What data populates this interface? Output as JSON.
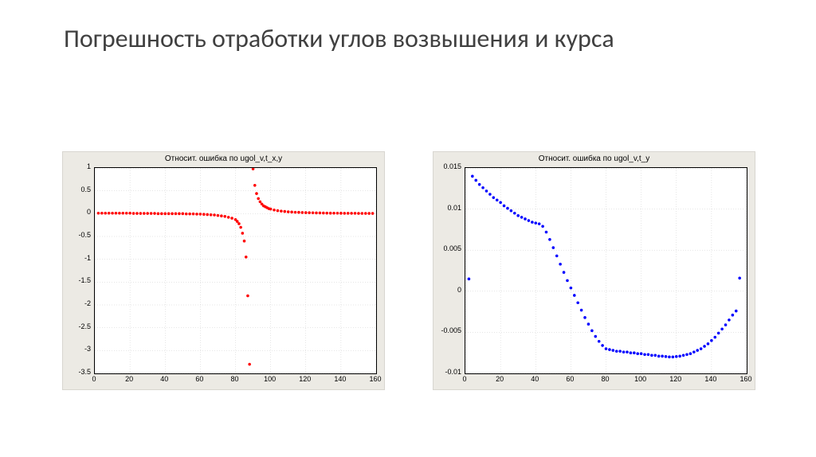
{
  "slide": {
    "title": "Погрешность отработки углов возвышения и курса",
    "title_fontsize": 32,
    "title_color": "#404040",
    "background": "#ffffff"
  },
  "left_chart": {
    "type": "scatter",
    "title": "Относит. ошибка по ugol_v,t_x,y",
    "title_fontsize": 10,
    "background_panel": "#eceae4",
    "plot_bg": "#ffffff",
    "axis_color": "#000000",
    "grid_color": "#cccccc",
    "grid_style": "dotted",
    "marker_color": "#ff0000",
    "marker_size": 1.8,
    "xlim": [
      0,
      160
    ],
    "ylim": [
      -3.5,
      1
    ],
    "xticks": [
      0,
      20,
      40,
      60,
      80,
      100,
      120,
      140,
      160
    ],
    "yticks": [
      -3.5,
      -3,
      -2.5,
      -2,
      -1.5,
      -1,
      -0.5,
      0,
      0.5,
      1
    ],
    "points": [
      [
        2,
        0.01
      ],
      [
        4,
        0.01
      ],
      [
        6,
        0.01
      ],
      [
        8,
        0.01
      ],
      [
        10,
        0.01
      ],
      [
        12,
        0.01
      ],
      [
        14,
        0.01
      ],
      [
        16,
        0.01
      ],
      [
        18,
        0.01
      ],
      [
        20,
        0.01
      ],
      [
        22,
        0.005
      ],
      [
        24,
        0.005
      ],
      [
        26,
        0.005
      ],
      [
        28,
        0.005
      ],
      [
        30,
        0.005
      ],
      [
        32,
        0.005
      ],
      [
        34,
        0.005
      ],
      [
        36,
        0.0
      ],
      [
        38,
        0.0
      ],
      [
        40,
        0.0
      ],
      [
        42,
        0.0
      ],
      [
        44,
        0.0
      ],
      [
        46,
        0.0
      ],
      [
        48,
        0.0
      ],
      [
        50,
        0.0
      ],
      [
        52,
        -0.005
      ],
      [
        54,
        -0.005
      ],
      [
        56,
        -0.005
      ],
      [
        58,
        -0.01
      ],
      [
        60,
        -0.01
      ],
      [
        62,
        -0.015
      ],
      [
        64,
        -0.02
      ],
      [
        66,
        -0.025
      ],
      [
        68,
        -0.03
      ],
      [
        70,
        -0.04
      ],
      [
        72,
        -0.05
      ],
      [
        74,
        -0.06
      ],
      [
        76,
        -0.08
      ],
      [
        78,
        -0.1
      ],
      [
        80,
        -0.13
      ],
      [
        81,
        -0.17
      ],
      [
        82,
        -0.22
      ],
      [
        83,
        -0.3
      ],
      [
        84,
        -0.43
      ],
      [
        85,
        -0.6
      ],
      [
        86,
        -0.95
      ],
      [
        87,
        -1.8
      ],
      [
        88,
        -3.3
      ],
      [
        90,
        0.98
      ],
      [
        91,
        0.62
      ],
      [
        92,
        0.44
      ],
      [
        93,
        0.33
      ],
      [
        94,
        0.26
      ],
      [
        95,
        0.21
      ],
      [
        96,
        0.17
      ],
      [
        97,
        0.15
      ],
      [
        98,
        0.13
      ],
      [
        99,
        0.11
      ],
      [
        100,
        0.1
      ],
      [
        102,
        0.08
      ],
      [
        104,
        0.065
      ],
      [
        106,
        0.055
      ],
      [
        108,
        0.048
      ],
      [
        110,
        0.04
      ],
      [
        112,
        0.035
      ],
      [
        114,
        0.03
      ],
      [
        116,
        0.028
      ],
      [
        118,
        0.025
      ],
      [
        120,
        0.022
      ],
      [
        122,
        0.02
      ],
      [
        124,
        0.018
      ],
      [
        126,
        0.016
      ],
      [
        128,
        0.015
      ],
      [
        130,
        0.014
      ],
      [
        132,
        0.012
      ],
      [
        134,
        0.011
      ],
      [
        136,
        0.01
      ],
      [
        138,
        0.01
      ],
      [
        140,
        0.009
      ],
      [
        142,
        0.008
      ],
      [
        144,
        0.008
      ],
      [
        146,
        0.007
      ],
      [
        148,
        0.007
      ],
      [
        150,
        0.006
      ],
      [
        152,
        0.006
      ],
      [
        154,
        0.006
      ],
      [
        156,
        0.005
      ],
      [
        158,
        0.005
      ]
    ]
  },
  "right_chart": {
    "type": "scatter",
    "title": "Относит. ошибка по ugol_v,t_y",
    "title_fontsize": 10,
    "background_panel": "#eceae4",
    "plot_bg": "#ffffff",
    "axis_color": "#000000",
    "grid_color": "#cccccc",
    "grid_style": "dotted",
    "marker_color": "#0000ff",
    "marker_size": 1.8,
    "xlim": [
      0,
      160
    ],
    "ylim": [
      -0.01,
      0.015
    ],
    "xticks": [
      0,
      20,
      40,
      60,
      80,
      100,
      120,
      140,
      160
    ],
    "yticks": [
      -0.01,
      -0.005,
      0,
      0.005,
      0.01,
      0.015
    ],
    "points": [
      [
        2,
        0.0015
      ],
      [
        4,
        0.014
      ],
      [
        6,
        0.0135
      ],
      [
        8,
        0.013
      ],
      [
        10,
        0.0126
      ],
      [
        12,
        0.0122
      ],
      [
        14,
        0.0118
      ],
      [
        16,
        0.0114
      ],
      [
        18,
        0.0111
      ],
      [
        20,
        0.0108
      ],
      [
        22,
        0.0104
      ],
      [
        24,
        0.0101
      ],
      [
        26,
        0.0098
      ],
      [
        28,
        0.0095
      ],
      [
        30,
        0.0092
      ],
      [
        32,
        0.009
      ],
      [
        34,
        0.0088
      ],
      [
        36,
        0.0086
      ],
      [
        38,
        0.0084
      ],
      [
        40,
        0.0083
      ],
      [
        42,
        0.0082
      ],
      [
        44,
        0.0079
      ],
      [
        46,
        0.0072
      ],
      [
        48,
        0.0063
      ],
      [
        50,
        0.0053
      ],
      [
        52,
        0.0043
      ],
      [
        54,
        0.0033
      ],
      [
        56,
        0.0023
      ],
      [
        58,
        0.0013
      ],
      [
        60,
        0.0004
      ],
      [
        62,
        -0.0005
      ],
      [
        64,
        -0.0014
      ],
      [
        66,
        -0.0023
      ],
      [
        68,
        -0.0032
      ],
      [
        70,
        -0.004
      ],
      [
        72,
        -0.0048
      ],
      [
        74,
        -0.0055
      ],
      [
        76,
        -0.0061
      ],
      [
        78,
        -0.0066
      ],
      [
        80,
        -0.007
      ],
      [
        82,
        -0.0071
      ],
      [
        84,
        -0.0072
      ],
      [
        86,
        -0.0073
      ],
      [
        88,
        -0.0073
      ],
      [
        90,
        -0.0074
      ],
      [
        92,
        -0.0074
      ],
      [
        94,
        -0.0075
      ],
      [
        96,
        -0.0075
      ],
      [
        98,
        -0.0076
      ],
      [
        100,
        -0.0076
      ],
      [
        102,
        -0.0077
      ],
      [
        104,
        -0.0077
      ],
      [
        106,
        -0.0078
      ],
      [
        108,
        -0.0078
      ],
      [
        110,
        -0.0079
      ],
      [
        112,
        -0.0079
      ],
      [
        114,
        -0.00795
      ],
      [
        116,
        -0.008
      ],
      [
        118,
        -0.008
      ],
      [
        120,
        -0.00795
      ],
      [
        122,
        -0.0079
      ],
      [
        124,
        -0.0078
      ],
      [
        126,
        -0.0077
      ],
      [
        128,
        -0.0076
      ],
      [
        130,
        -0.0074
      ],
      [
        132,
        -0.0072
      ],
      [
        134,
        -0.007
      ],
      [
        136,
        -0.0067
      ],
      [
        138,
        -0.0064
      ],
      [
        140,
        -0.006
      ],
      [
        142,
        -0.0056
      ],
      [
        144,
        -0.0051
      ],
      [
        146,
        -0.0046
      ],
      [
        148,
        -0.0041
      ],
      [
        150,
        -0.0035
      ],
      [
        152,
        -0.0029
      ],
      [
        154,
        -0.0024
      ],
      [
        156,
        0.0016
      ]
    ]
  }
}
